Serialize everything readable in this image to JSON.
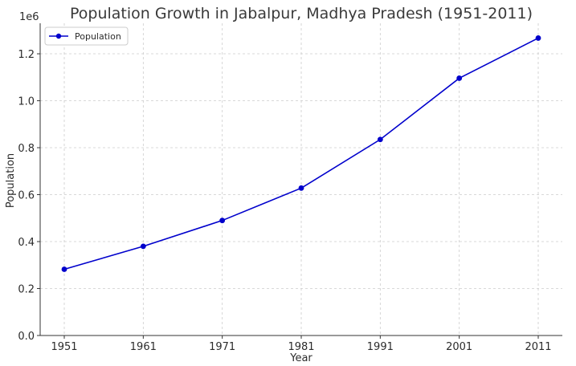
{
  "chart_data": {
    "type": "line",
    "title": "Population Growth in Jabalpur, Madhya Pradesh (1951-2011)",
    "xlabel": "Year",
    "ylabel": "Population",
    "y_offset_label": "1e6",
    "categories": [
      "1951",
      "1961",
      "1971",
      "1981",
      "1991",
      "2001",
      "2011"
    ],
    "series": [
      {
        "name": "Population",
        "values": [
          282000,
          380000,
          490000,
          628000,
          835000,
          1096000,
          1267000
        ],
        "color": "#0000cc"
      }
    ],
    "ylim": [
      0,
      1330000
    ],
    "yticks": [
      0,
      200000,
      400000,
      600000,
      800000,
      1000000,
      1200000
    ],
    "ytick_labels": [
      "0.0",
      "0.2",
      "0.4",
      "0.6",
      "0.8",
      "1.0",
      "1.2"
    ],
    "grid": true,
    "legend_position": "top-left"
  }
}
